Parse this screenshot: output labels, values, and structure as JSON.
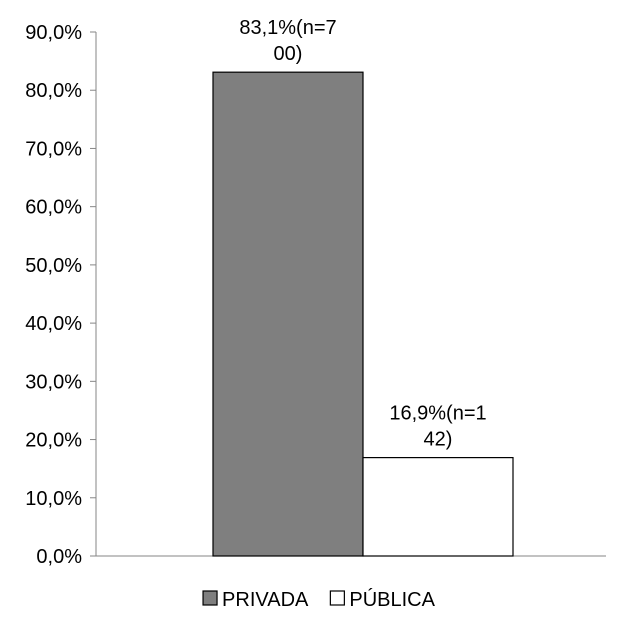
{
  "chart_data": {
    "type": "bar",
    "categories": [
      ""
    ],
    "series": [
      {
        "name": "PRIVADA",
        "values": [
          83.1
        ],
        "color": "#7f7f7f",
        "label_lines": [
          "83,1%(n=7",
          "00)"
        ]
      },
      {
        "name": "PÚBLICA",
        "values": [
          16.9
        ],
        "color": "#ffffff",
        "label_lines": [
          "16,9%(n=1",
          "42)"
        ]
      }
    ],
    "ylim": [
      0,
      90
    ],
    "yticks": [
      {
        "value": 0,
        "label": "0,0%"
      },
      {
        "value": 10,
        "label": "10,0%"
      },
      {
        "value": 20,
        "label": "20,0%"
      },
      {
        "value": 30,
        "label": "30,0%"
      },
      {
        "value": 40,
        "label": "40,0%"
      },
      {
        "value": 50,
        "label": "50,0%"
      },
      {
        "value": 60,
        "label": "60,0%"
      },
      {
        "value": 70,
        "label": "70,0%"
      },
      {
        "value": 80,
        "label": "80,0%"
      },
      {
        "value": 90,
        "label": "90,0%"
      }
    ],
    "title": "",
    "xlabel": "",
    "ylabel": "",
    "grid": false,
    "legend_position": "bottom"
  }
}
